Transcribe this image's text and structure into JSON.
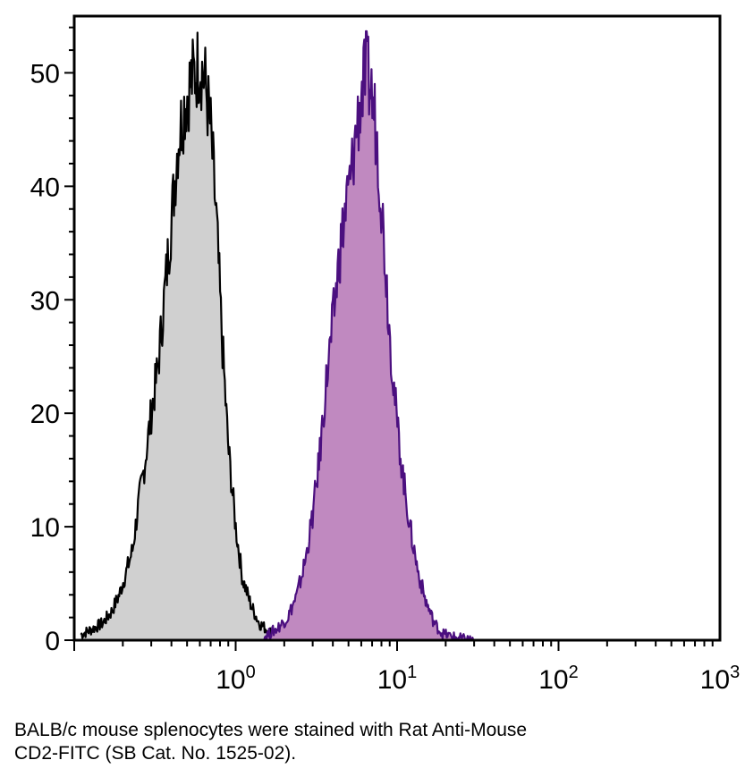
{
  "caption": {
    "line1": "BALB/c mouse splenocytes were stained with Rat Anti-Mouse",
    "line2": "CD2-FITC (SB Cat. No. 1525-02)."
  },
  "chart_data": {
    "type": "area",
    "title": "",
    "xlabel": "",
    "ylabel": "",
    "xscale": "log",
    "xlim": [
      0.1,
      1000
    ],
    "ylim": [
      0,
      55
    ],
    "x_ticks": [
      {
        "value": 1,
        "base": "10",
        "exp": "0"
      },
      {
        "value": 10,
        "base": "10",
        "exp": "1"
      },
      {
        "value": 100,
        "base": "10",
        "exp": "2"
      },
      {
        "value": 1000,
        "base": "10",
        "exp": "3"
      }
    ],
    "y_ticks": [
      0,
      10,
      20,
      30,
      40,
      50
    ],
    "grid": false,
    "legend": "none",
    "series": [
      {
        "fill": "#d0d0d0",
        "stroke": "#000000",
        "x": [
          0.11,
          0.13,
          0.15,
          0.17,
          0.19,
          0.21,
          0.23,
          0.25,
          0.27,
          0.3,
          0.33,
          0.36,
          0.4,
          0.44,
          0.48,
          0.52,
          0.56,
          0.6,
          0.65,
          0.7,
          0.76,
          0.82,
          0.9,
          1.0,
          1.1,
          1.25,
          1.4,
          1.6,
          1.8,
          2.0
        ],
        "y": [
          0.5,
          1,
          1.5,
          2.5,
          4,
          6,
          8,
          12,
          15,
          20,
          24,
          30,
          37,
          44,
          47,
          49,
          50,
          51,
          49,
          45,
          37,
          27,
          17,
          10,
          5.5,
          3,
          1.5,
          0.8,
          0.3,
          0
        ]
      },
      {
        "fill": "#c089c0",
        "stroke": "#4b0f7f",
        "x": [
          1.5,
          1.8,
          2.1,
          2.4,
          2.7,
          3.0,
          3.3,
          3.6,
          4.0,
          4.4,
          4.8,
          5.2,
          5.6,
          6.0,
          6.4,
          6.8,
          7.3,
          7.8,
          8.4,
          9.0,
          10,
          11,
          12,
          13.5,
          15,
          17,
          19,
          22,
          26,
          30
        ],
        "y": [
          0.3,
          1,
          2,
          4,
          7,
          11,
          16,
          22,
          28,
          34,
          38,
          41,
          45,
          48,
          50,
          49,
          46,
          41,
          34,
          27,
          19,
          14,
          10,
          6,
          3.5,
          1.5,
          0.6,
          0.3,
          0.1,
          0
        ]
      }
    ]
  }
}
